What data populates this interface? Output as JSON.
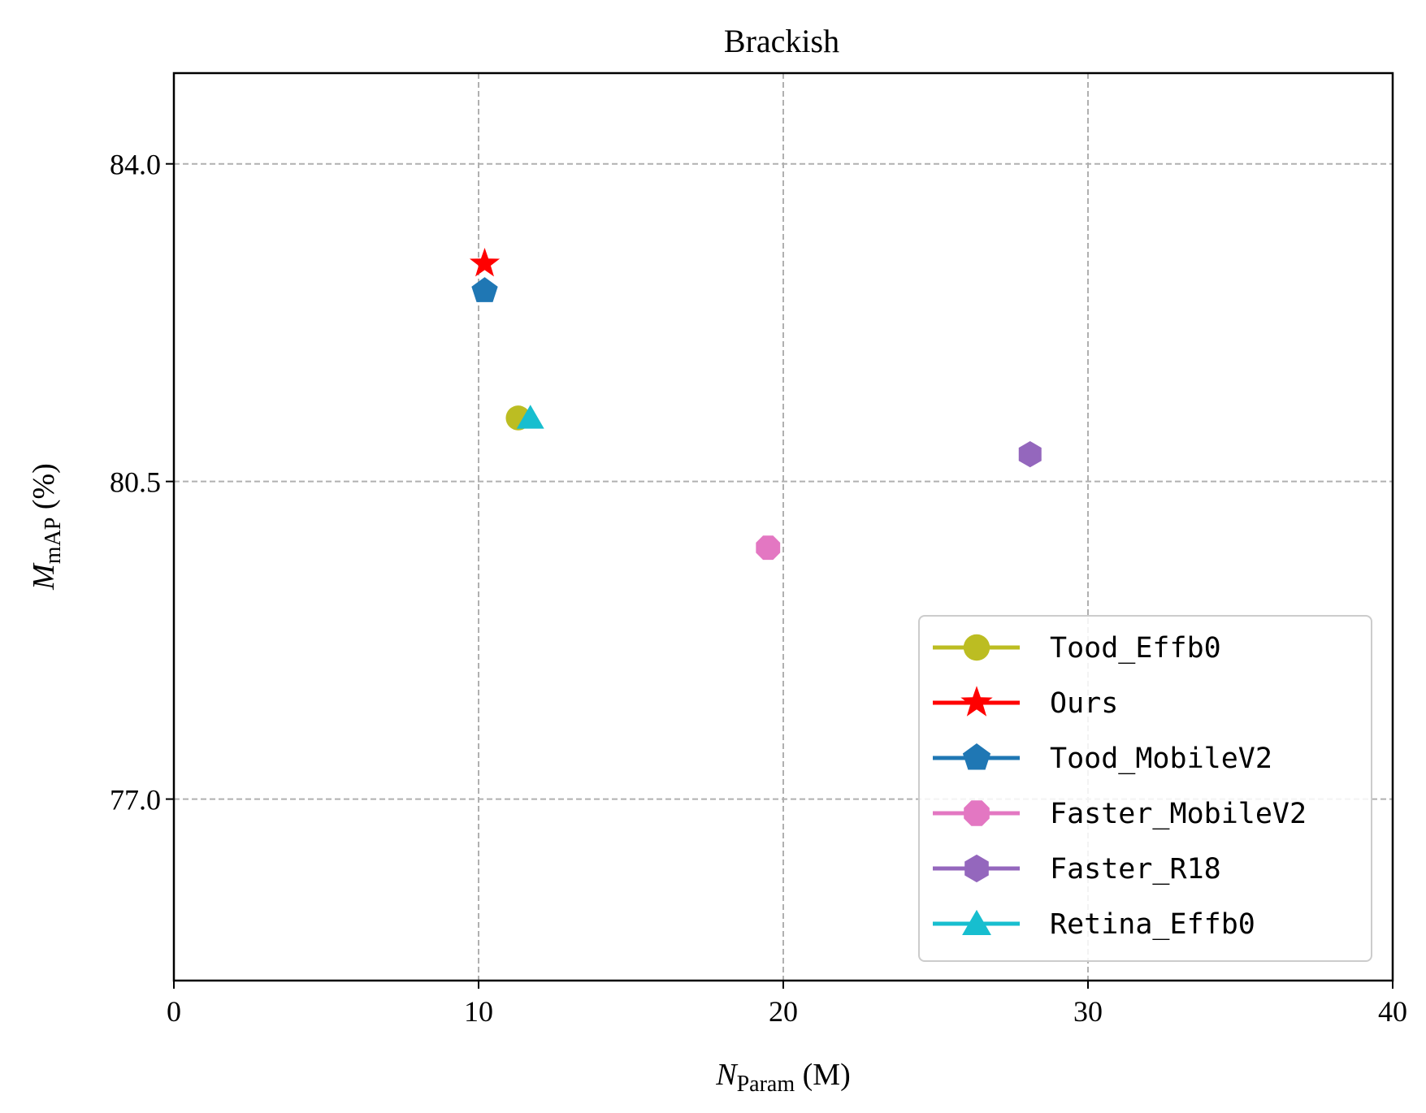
{
  "chart_data": {
    "type": "scatter",
    "title": "Brackish",
    "xlabel": {
      "main": "N",
      "sub": "Param",
      "suffix": " (M)"
    },
    "ylabel": {
      "main": "M",
      "sub": "mAP",
      "suffix": " (%)"
    },
    "xlim": [
      0,
      40
    ],
    "ylim": [
      75.0,
      85.0
    ],
    "xticks": [
      0,
      10,
      20,
      30,
      40
    ],
    "xtick_labels": [
      "0",
      "10",
      "20",
      "30",
      "40"
    ],
    "yticks": [
      77.0,
      80.5,
      84.0
    ],
    "ytick_labels": [
      "77.0",
      "80.5",
      "84.0"
    ],
    "grid": true,
    "legend_position": "lower-right",
    "series": [
      {
        "name": "Tood_Effb0",
        "marker": "circle",
        "color": "#bcbd22",
        "x": [
          11.3
        ],
        "y": [
          81.2
        ]
      },
      {
        "name": "Ours",
        "marker": "star",
        "color": "#ff0000",
        "x": [
          10.2
        ],
        "y": [
          82.9
        ]
      },
      {
        "name": "Tood_MobileV2",
        "marker": "pentagon",
        "color": "#1f77b4",
        "x": [
          10.2
        ],
        "y": [
          82.6
        ]
      },
      {
        "name": "Faster_MobileV2",
        "marker": "octagon",
        "color": "#e377c2",
        "x": [
          19.5
        ],
        "y": [
          79.77
        ]
      },
      {
        "name": "Faster_R18",
        "marker": "hexagon",
        "color": "#9467bd",
        "x": [
          28.1
        ],
        "y": [
          80.8
        ]
      },
      {
        "name": "Retina_Effb0",
        "marker": "triangle",
        "color": "#17becf",
        "x": [
          11.7
        ],
        "y": [
          81.2
        ]
      }
    ]
  }
}
